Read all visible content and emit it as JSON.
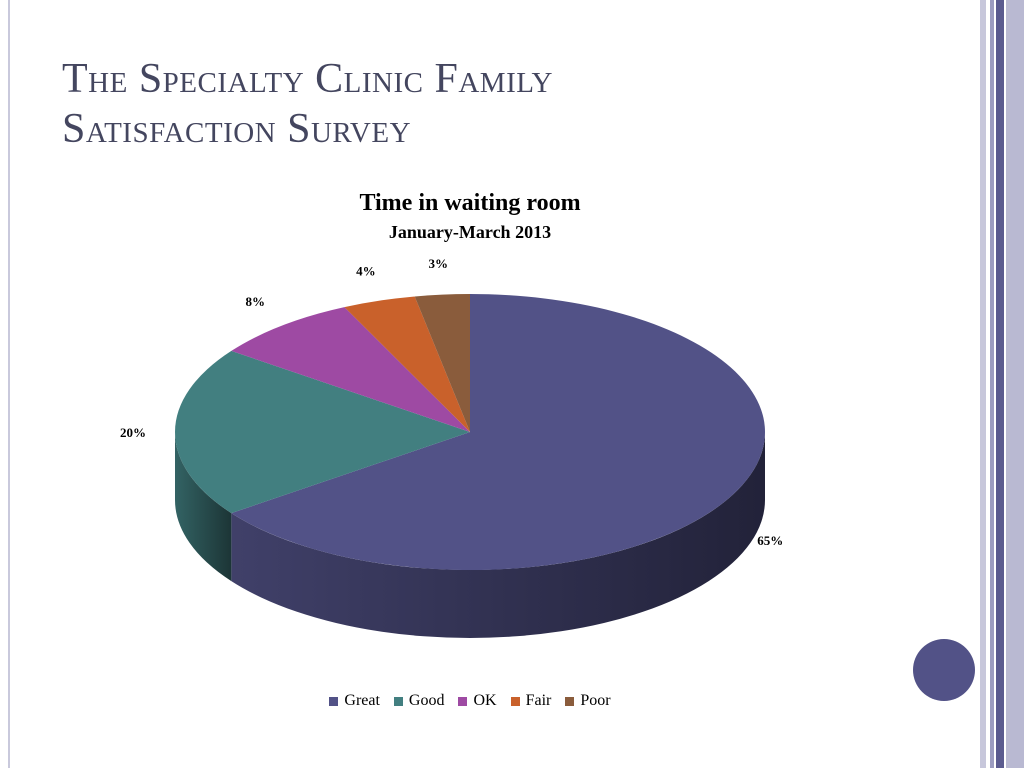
{
  "slide": {
    "title_line1": "The Specialty Clinic Family",
    "title_line2": "Satisfaction Survey"
  },
  "chart_data": {
    "type": "pie",
    "title": "Time in waiting room",
    "subtitle": "January-March 2013",
    "categories": [
      "Great",
      "Good",
      "OK",
      "Fair",
      "Poor"
    ],
    "values": [
      65,
      20,
      8,
      4,
      3
    ],
    "labels": [
      "65%",
      "20%",
      "8%",
      "4%",
      "3%"
    ],
    "colors": [
      "#525287",
      "#427f80",
      "#9e4aa3",
      "#c9612b",
      "#8a5c3c"
    ],
    "legend_position": "bottom",
    "style": "3d-tilted"
  },
  "theme": {
    "accent": "#525287",
    "title_color": "#44465f"
  }
}
